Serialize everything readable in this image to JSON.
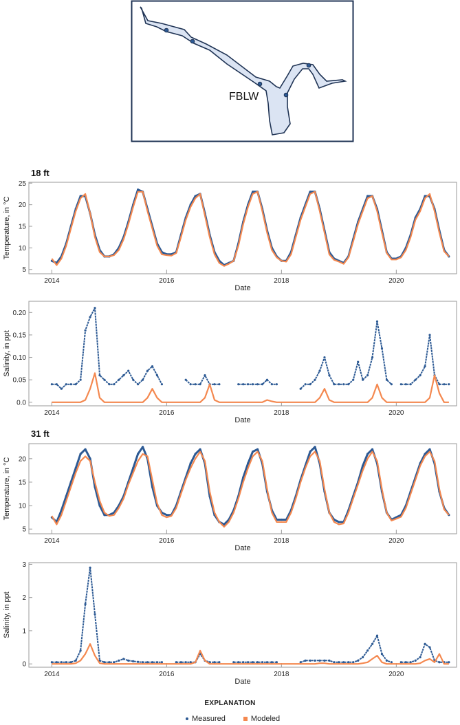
{
  "map": {
    "site_label": "FBLW"
  },
  "explanation": {
    "title": "EXPLANATION",
    "measured": "Measured",
    "modeled": "Modeled"
  },
  "colors": {
    "measured": "#2d5a94",
    "modeled": "#f4884f",
    "map_fill": "#dbe4f3",
    "map_stroke": "#1f3354"
  },
  "chart_data": [
    {
      "type": "line",
      "panel_title": "18 ft",
      "xlabel": "Date",
      "ylabel": "Temperature, in °C",
      "xlim": [
        2013.6,
        2021.05
      ],
      "ylim": [
        4,
        25.2
      ],
      "xticks": [
        2014,
        2016,
        2018,
        2020
      ],
      "yticks": [
        5,
        10,
        15,
        20,
        25
      ],
      "x_start": 2014,
      "step": "monthly",
      "series": [
        {
          "name": "Measured",
          "values": [
            7,
            6.5,
            8,
            11,
            15,
            19,
            22,
            22,
            18,
            13,
            9.5,
            8,
            8,
            8.5,
            10,
            12.5,
            16,
            20,
            23.5,
            23,
            19,
            15,
            11,
            9,
            8.5,
            8.5,
            9,
            13,
            17,
            20,
            22,
            22.5,
            18,
            13,
            9,
            7,
            6,
            6.5,
            7,
            11,
            16,
            20,
            23,
            23,
            19,
            14,
            10,
            8,
            7,
            7,
            9,
            13,
            17,
            20,
            23,
            23,
            19,
            14,
            9,
            7.5,
            7,
            6.5,
            8,
            12,
            16,
            19,
            22,
            22,
            19,
            14,
            9,
            7.5,
            7.5,
            8,
            10,
            13,
            17,
            19,
            22,
            22,
            19,
            14,
            9.5,
            8
          ]
        },
        {
          "name": "Modeled",
          "values": [
            7.5,
            6,
            7.5,
            10.5,
            14.5,
            18.5,
            21.5,
            22.5,
            18,
            12.5,
            9,
            8,
            8,
            8.3,
            9.5,
            12,
            15.5,
            19.5,
            23,
            23,
            18.5,
            14.5,
            10.5,
            8.5,
            8.3,
            8.2,
            8.8,
            12.5,
            16.5,
            19.5,
            21.5,
            22.5,
            17.5,
            12.5,
            8.5,
            6.5,
            5.8,
            6.3,
            7,
            10.5,
            15.5,
            19.5,
            22.5,
            23,
            18.5,
            13.5,
            9.5,
            7.8,
            7,
            6.8,
            8.5,
            12.5,
            16.5,
            19.5,
            22.5,
            23,
            18.5,
            13.5,
            8.5,
            7.2,
            6.8,
            6.3,
            7.8,
            11.5,
            15.5,
            18.5,
            21.5,
            22,
            18.5,
            13.5,
            8.8,
            7.3,
            7.3,
            7.8,
            9.5,
            12.5,
            16.5,
            18.5,
            21.5,
            22.5,
            18.5,
            13.5,
            9.2,
            8
          ]
        }
      ]
    },
    {
      "type": "scatter",
      "panel_title": "",
      "xlabel": "Date",
      "ylabel": "Salinity, in ppt",
      "xlim": [
        2013.6,
        2021.05
      ],
      "ylim": [
        -0.008,
        0.225
      ],
      "xticks": [
        2014,
        2016,
        2018,
        2020
      ],
      "yticks": [
        0.0,
        0.05,
        0.1,
        0.15,
        0.2
      ],
      "ytick_labels": [
        "0.0",
        "0.05",
        "0.10",
        "0.15",
        "0.20"
      ],
      "x_start": 2014,
      "step": "monthly",
      "series": [
        {
          "name": "Measured",
          "values": [
            0.04,
            0.04,
            0.03,
            0.04,
            0.04,
            0.04,
            0.05,
            0.16,
            0.19,
            0.21,
            0.06,
            0.05,
            0.04,
            0.04,
            0.05,
            0.06,
            0.07,
            0.05,
            0.04,
            0.05,
            0.07,
            0.08,
            0.06,
            0.04,
            null,
            null,
            null,
            null,
            0.05,
            0.04,
            0.04,
            0.04,
            0.06,
            0.04,
            0.04,
            0.04,
            null,
            null,
            null,
            0.04,
            0.04,
            0.04,
            0.04,
            0.04,
            0.04,
            0.05,
            0.04,
            0.04,
            null,
            null,
            null,
            null,
            0.03,
            0.04,
            0.04,
            0.05,
            0.07,
            0.1,
            0.06,
            0.04,
            0.04,
            0.04,
            0.04,
            0.05,
            0.09,
            0.05,
            0.06,
            0.1,
            0.18,
            0.12,
            0.05,
            0.04,
            null,
            0.04,
            0.04,
            0.04,
            0.05,
            0.06,
            0.08,
            0.15,
            0.06,
            0.04,
            0.04,
            0.04
          ]
        },
        {
          "name": "Modeled",
          "values": [
            0,
            0,
            0,
            0,
            0,
            0,
            0,
            0.005,
            0.03,
            0.065,
            0.01,
            0,
            0,
            0,
            0,
            0,
            0,
            0,
            0,
            0,
            0.01,
            0.03,
            0.01,
            0,
            0,
            0,
            0,
            0,
            0,
            0,
            0,
            0,
            0.01,
            0.04,
            0.005,
            0,
            0,
            0,
            0,
            0,
            0,
            0,
            0,
            0,
            0,
            0.005,
            0.002,
            0,
            0,
            0,
            0,
            0,
            0,
            0,
            0,
            0,
            0.01,
            0.03,
            0.005,
            0,
            0,
            0,
            0,
            0,
            0,
            0,
            0,
            0.01,
            0.04,
            0.01,
            0,
            0,
            0,
            0,
            0,
            0,
            0,
            0,
            0,
            0.01,
            0.06,
            0.02,
            0,
            0
          ]
        }
      ]
    },
    {
      "type": "line",
      "panel_title": "31 ft",
      "xlabel": "Date",
      "ylabel": "Temperature, in °C",
      "xlim": [
        2013.6,
        2021.05
      ],
      "ylim": [
        4,
        23.2
      ],
      "xticks": [
        2014,
        2016,
        2018,
        2020
      ],
      "yticks": [
        5,
        10,
        15,
        20
      ],
      "x_start": 2014,
      "step": "monthly",
      "series": [
        {
          "name": "Measured",
          "values": [
            7.5,
            6.5,
            9,
            12,
            15,
            18,
            21,
            22,
            20,
            14,
            10,
            8,
            8,
            8.5,
            10,
            12,
            15,
            18,
            21,
            22.5,
            20,
            14,
            10,
            8.5,
            8,
            8,
            10,
            13,
            16,
            19,
            21,
            22,
            19,
            12,
            8,
            6.5,
            6,
            7,
            9,
            12,
            16,
            19,
            21.5,
            22,
            19,
            13,
            9,
            7,
            7,
            7,
            9,
            12,
            15.5,
            18.5,
            21.5,
            22.5,
            19,
            13,
            8.5,
            7,
            6.5,
            6.5,
            9,
            12,
            15,
            18.5,
            21,
            22,
            19,
            13,
            8.5,
            7,
            7.5,
            8,
            10,
            13,
            16,
            19,
            21,
            22,
            19,
            13,
            9.5,
            8
          ]
        },
        {
          "name": "Modeled",
          "values": [
            7.8,
            6,
            8,
            11,
            14,
            17,
            19.5,
            20.5,
            19.5,
            15,
            11,
            8.5,
            7.8,
            8,
            9.5,
            11.5,
            14.5,
            17,
            19.5,
            21,
            20.5,
            15.5,
            10.5,
            8,
            7.5,
            7.8,
            9.5,
            12.5,
            15.5,
            18,
            20,
            21.5,
            19.5,
            13,
            8.5,
            6.5,
            5.5,
            6.5,
            8.5,
            11.5,
            15,
            18,
            20.5,
            21.5,
            19.5,
            13.5,
            8.5,
            6.5,
            6.5,
            6.5,
            8.5,
            11.5,
            15,
            18,
            20.5,
            21.5,
            19.5,
            13.5,
            8.5,
            6.5,
            6,
            6.2,
            8.5,
            11.5,
            14.5,
            17.5,
            20,
            21.5,
            19.5,
            13.5,
            8.5,
            6.8,
            7.2,
            7.6,
            9.5,
            12.5,
            15.5,
            18.5,
            20.5,
            21.5,
            19.5,
            13.5,
            9.2,
            8
          ]
        }
      ]
    },
    {
      "type": "scatter",
      "panel_title": "",
      "xlabel": "Date",
      "ylabel": "Salinity, in ppt",
      "xlim": [
        2013.6,
        2021.05
      ],
      "ylim": [
        -0.1,
        3.05
      ],
      "xticks": [
        2014,
        2016,
        2018,
        2020
      ],
      "yticks": [
        0,
        1,
        2,
        3
      ],
      "x_start": 2014,
      "step": "monthly",
      "series": [
        {
          "name": "Measured",
          "values": [
            0.05,
            0.05,
            0.05,
            0.05,
            0.05,
            0.1,
            0.4,
            1.8,
            2.9,
            1.5,
            0.1,
            0.05,
            0.05,
            0.05,
            0.1,
            0.15,
            0.1,
            0.08,
            0.06,
            0.05,
            0.05,
            0.05,
            0.05,
            0.05,
            null,
            null,
            0.05,
            0.05,
            0.05,
            0.05,
            0.05,
            0.3,
            0.1,
            0.05,
            0.05,
            0.05,
            null,
            null,
            0.05,
            0.05,
            0.05,
            0.05,
            0.05,
            0.05,
            0.05,
            0.05,
            0.05,
            0.05,
            null,
            null,
            null,
            null,
            0.05,
            0.1,
            0.1,
            0.1,
            0.1,
            0.1,
            0.1,
            0.05,
            0.05,
            0.05,
            0.05,
            0.05,
            0.1,
            0.2,
            0.4,
            0.6,
            0.85,
            0.3,
            0.1,
            0.05,
            null,
            0.05,
            0.05,
            0.05,
            0.1,
            0.2,
            0.6,
            0.5,
            0.1,
            0.05,
            0.05,
            0.05
          ]
        },
        {
          "name": "Modeled",
          "values": [
            0,
            0,
            0,
            0,
            0,
            0.02,
            0.1,
            0.3,
            0.6,
            0.25,
            0.02,
            0,
            0,
            0,
            0,
            0,
            0,
            0,
            0,
            0,
            0,
            0,
            0,
            0,
            0,
            0,
            0,
            0,
            0,
            0,
            0.05,
            0.4,
            0.1,
            0,
            0,
            0,
            0,
            0,
            0,
            0,
            0,
            0,
            0,
            0,
            0,
            0,
            0,
            0,
            0,
            0,
            0,
            0,
            0,
            0,
            0,
            0,
            0.02,
            0.02,
            0,
            0,
            0,
            0,
            0,
            0,
            0,
            0.02,
            0.05,
            0.15,
            0.25,
            0.05,
            0,
            0,
            0,
            0,
            0,
            0,
            0,
            0.02,
            0.1,
            0.15,
            0.05,
            0.3,
            0,
            0
          ]
        }
      ]
    }
  ]
}
